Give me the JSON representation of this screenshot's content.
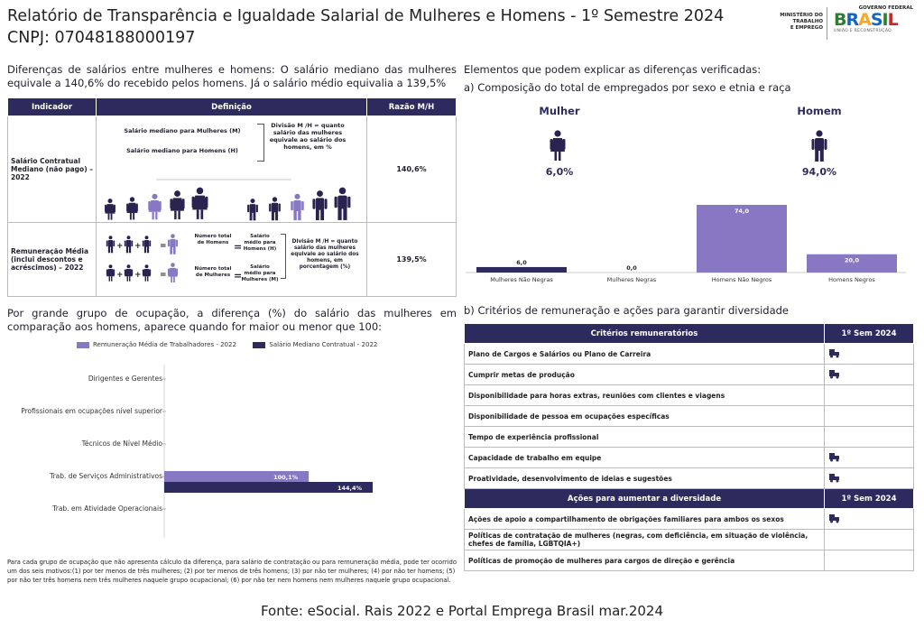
{
  "header": {
    "title": "Relatório de Transparência e Igualdade Salarial de Mulheres e Homens - 1º Semestre 2024",
    "cnpj": "CNPJ: 07048188000197",
    "logo_ministry": [
      "MINISTÉRIO DO",
      "TRABALHO",
      "E EMPREGO"
    ],
    "logo_gov_top": "GOVERNO FEDERAL",
    "logo_brasil": "BRASIL",
    "logo_gov_sub": "UNIÃO E RECONSTRUÇÃO"
  },
  "intro": "Diferenças de salários entre mulheres e homens: O salário mediano das mulheres equivale a 140,6% do recebido pelos homens. Já o salário médio equivalia a 139,5%",
  "indicator_table": {
    "headers": [
      "Indicador",
      "Definição",
      "Razão M/H"
    ],
    "rows": [
      {
        "indicator": "Salário Contratual Mediano (não pago) – 2022",
        "ratio": "140,6%",
        "def_women": "Salário mediano para Mulheres (M)",
        "def_men": "Salário mediano para Homens (H)",
        "def_division": "Divisão M /H = quanto salário das mulheres equivale ao salário dos homens, em %"
      },
      {
        "indicator": "Remuneração Média (inclui descontos e acréscimos) – 2022",
        "ratio": "139,5%",
        "def_total_men": "Número total de Homens",
        "def_total_women": "Número total de Mulheres",
        "def_avg_men": "Salário médio para Homens (H)",
        "def_avg_women": "Salário médio para Mulheres (M)",
        "def_division": "Divisão M /H = quanto salário das mulheres equivale ao salário dos homens, em porcentagem (%)"
      }
    ]
  },
  "composition": {
    "heading": "Elementos que podem explicar as diferenças verificadas:",
    "subheading": "a) Composição do total de empregados por sexo e etnia e raça",
    "women_label": "Mulher",
    "women_pct": "6,0%",
    "men_label": "Homem",
    "men_pct": "94,0%"
  },
  "occupation_text": "Por grande grupo de ocupação, a diferença (%) do salário das mulheres em comparação aos homens, aparece quando for maior ou menor que 100:",
  "criteria": {
    "heading": "b) Critérios de remuneração e ações para garantir diversidade",
    "criteria_header": "Critérios remuneratórios",
    "period_header": "1º Sem 2024",
    "criteria_rows": [
      {
        "label": "Plano de Cargos e Salários ou Plano de Carreira",
        "checked": true
      },
      {
        "label": "Cumprir metas de produção",
        "checked": true
      },
      {
        "label": "Disponibilidade para horas extras, reuniões com clientes e viagens",
        "checked": false
      },
      {
        "label": "Disponibilidade de pessoa em ocupações específicas",
        "checked": false
      },
      {
        "label": "Tempo de experiência profissional",
        "checked": false
      },
      {
        "label": "Capacidade de trabalho em equipe",
        "checked": true
      },
      {
        "label": "Proatividade, desenvolvimento de ideias e sugestões",
        "checked": true
      }
    ],
    "actions_header": "Ações para aumentar a diversidade",
    "actions_rows": [
      {
        "label": "Ações de apoio a compartilhamento de obrigações familiares para ambos os sexos",
        "checked": true
      },
      {
        "label": "Políticas de contratação de mulheres (negras, com deficiência, em situação de violência, chefes de família, LGBTQIA+)",
        "checked": false
      },
      {
        "label": "Políticas de promoção de mulheres para cargos de direção e gerência",
        "checked": false
      }
    ]
  },
  "footnote": "Para cada grupo de ocupação que não apresenta cálculo da diferença, para salário de contratação ou para remuneração média, pode ter ocorrido um dos seis motivos:(1) por ter menos de três mulheres; (2) por ter menos de três homens; (3) por não ter mulheres; (4) por não ter homens; (5) por não ter três homens nem três mulheres naquele grupo ocupacional; (6) por não ter nem homens nem mulheres naquele grupo ocupacional.",
  "source": "Fonte: eSocial. Rais 2022 e Portal Emprega Brasil mar.2024",
  "colors": {
    "navy": "#2d2a5e",
    "purple": "#8878c3",
    "dark_bar": "#2d2a5e",
    "woman_icon": "#2a2350",
    "man_icon": "#2a2350",
    "woman_light": "#8878c3"
  },
  "chart_data": [
    {
      "type": "bar",
      "orientation": "vertical",
      "categories": [
        "Mulheres Não Negras",
        "Mulheres Negras",
        "Homens Não Negros",
        "Homens Negros"
      ],
      "values": [
        6.0,
        0.0,
        74.0,
        20.0
      ],
      "value_labels": [
        "6,0",
        "0,0",
        "74,0",
        "20,0"
      ],
      "colors": [
        "#2d2a5e",
        "#2d2a5e",
        "#8878c3",
        "#8878c3"
      ]
    },
    {
      "type": "bar",
      "orientation": "horizontal",
      "categories": [
        "Dirigentes e Gerentes",
        "Profissionais em ocupações nível superior",
        "Técnicos de Nível Médio",
        "Trab. de Serviços Administrativos",
        "Trab. em Atividade Operacionais"
      ],
      "series": [
        {
          "name": "Remuneração Média de Trabalhadores - 2022",
          "color": "#8878c3",
          "values": [
            null,
            null,
            null,
            100.1,
            null
          ],
          "labels": [
            "",
            "",
            "",
            "100,1%",
            ""
          ]
        },
        {
          "name": "Salário Mediano Contratual - 2022",
          "color": "#2d2a5e",
          "values": [
            null,
            null,
            null,
            144.4,
            null
          ],
          "labels": [
            "",
            "",
            "",
            "144,4%",
            ""
          ]
        }
      ],
      "legend": "top"
    }
  ]
}
